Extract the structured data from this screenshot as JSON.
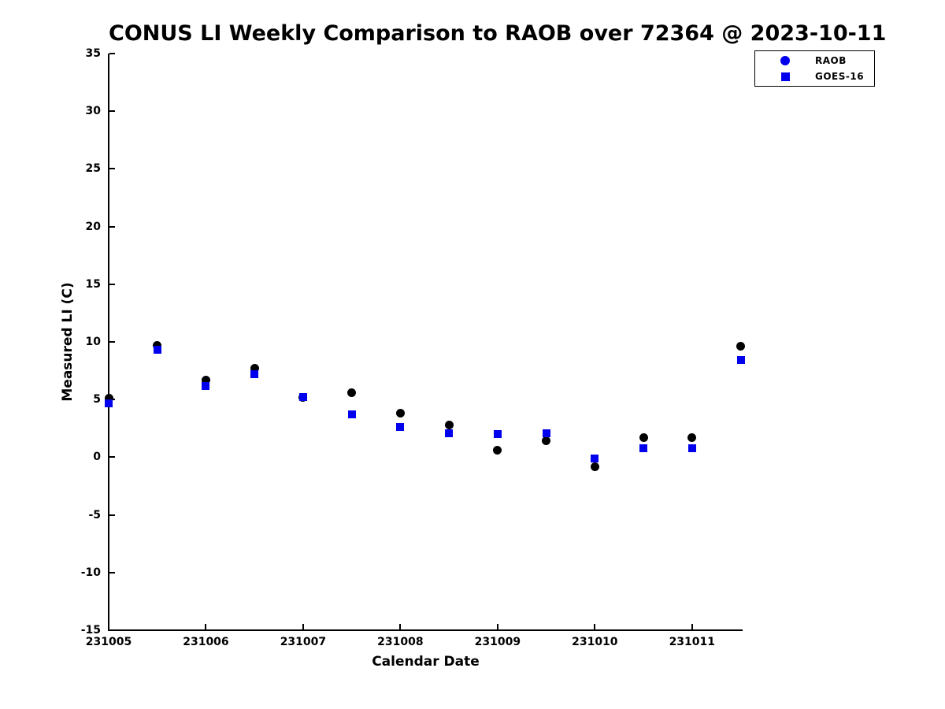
{
  "chart_data": {
    "type": "scatter",
    "title": "CONUS LI Weekly Comparison to RAOB over 72364 @ 2023-10-11",
    "xlabel": "Calendar Date",
    "ylabel": "Measured LI (C)",
    "xlim": [
      231005,
      231011.52
    ],
    "ylim": [
      -15,
      35
    ],
    "xticks": [
      231005,
      231006,
      231007,
      231008,
      231009,
      231010,
      231011
    ],
    "yticks": [
      -15,
      -10,
      -5,
      0,
      5,
      10,
      15,
      20,
      25,
      30,
      35
    ],
    "grid": false,
    "legend_position": "top-right",
    "x": [
      231005,
      231005.5,
      231006,
      231006.5,
      231007,
      231007.5,
      231008,
      231008.5,
      231009,
      231009.5,
      231010,
      231010.5,
      231011,
      231011.5
    ],
    "series": [
      {
        "name": "RAOB",
        "marker": "circle",
        "color": "#000000",
        "legend_color": "#0000ee",
        "values": [
          5.1,
          9.7,
          6.7,
          7.7,
          5.2,
          5.6,
          3.8,
          2.8,
          0.6,
          1.4,
          -0.8,
          1.7,
          1.7,
          9.6
        ]
      },
      {
        "name": "GOES-16",
        "marker": "square",
        "color": "#0000ee",
        "legend_color": "#0000ee",
        "values": [
          4.7,
          9.3,
          6.2,
          7.2,
          5.2,
          3.7,
          2.6,
          2.1,
          2.0,
          2.1,
          -0.1,
          0.8,
          0.8,
          8.4
        ]
      }
    ]
  },
  "colors": {
    "background": "#ffffff",
    "axis": "#000000",
    "marker_blue": "#0000ee",
    "marker_black": "#000000"
  }
}
